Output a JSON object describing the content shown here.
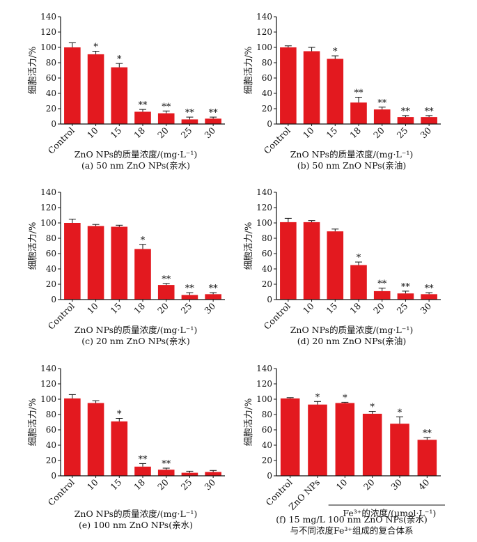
{
  "figure": {
    "bar_color": "#e3191f",
    "axis_color": "#111111"
  },
  "chart_data": [
    {
      "type": "bar",
      "panel": "a",
      "categories": [
        "Control",
        "10",
        "15",
        "18",
        "20",
        "25",
        "30"
      ],
      "values": [
        100,
        91,
        74,
        16,
        14,
        6,
        7
      ],
      "errors": [
        6,
        4,
        5,
        3,
        3,
        3,
        2
      ],
      "significance": [
        "",
        "*",
        "*",
        "**",
        "**",
        "**",
        "**"
      ],
      "ylabel": "细胞活力/%",
      "ylim": [
        0,
        140
      ],
      "yticks": [
        "0",
        "20",
        "40",
        "60",
        "80",
        "100",
        "120",
        "140"
      ],
      "xlabel": "ZnO NPs的质量浓度/(mg·L⁻¹)",
      "panel_label": "(a) 50 nm ZnO NPs(亲水)",
      "group_label": ""
    },
    {
      "type": "bar",
      "panel": "b",
      "categories": [
        "Control",
        "10",
        "15",
        "18",
        "20",
        "25",
        "30"
      ],
      "values": [
        100,
        95,
        85,
        28,
        19,
        9,
        9
      ],
      "errors": [
        2,
        5,
        4,
        7,
        3,
        2,
        2
      ],
      "significance": [
        "",
        "",
        "*",
        "**",
        "**",
        "**",
        "**"
      ],
      "ylabel": "细胞活力/%",
      "ylim": [
        0,
        140
      ],
      "yticks": [
        "0",
        "20",
        "40",
        "60",
        "80",
        "100",
        "120",
        "140"
      ],
      "xlabel": "ZnO NPs的质量浓度/(mg·L⁻¹)",
      "panel_label": "(b) 50 nm ZnO NPs(亲油)",
      "group_label": ""
    },
    {
      "type": "bar",
      "panel": "c",
      "categories": [
        "Control",
        "10",
        "15",
        "18",
        "20",
        "25",
        "30"
      ],
      "values": [
        100,
        96,
        95,
        66,
        19,
        6,
        7
      ],
      "errors": [
        5,
        2,
        2,
        6,
        2,
        3,
        2
      ],
      "significance": [
        "",
        "",
        "",
        "*",
        "**",
        "**",
        "**"
      ],
      "ylabel": "细胞活力/%",
      "ylim": [
        0,
        140
      ],
      "yticks": [
        "0",
        "20",
        "40",
        "60",
        "80",
        "100",
        "120",
        "140"
      ],
      "xlabel": "ZnO NPs的质量浓度/(mg·L⁻¹)",
      "panel_label": "(c) 20 nm ZnO NPs(亲水)",
      "group_label": ""
    },
    {
      "type": "bar",
      "panel": "d",
      "categories": [
        "Control",
        "10",
        "15",
        "18",
        "20",
        "25",
        "30"
      ],
      "values": [
        101,
        101,
        89,
        45,
        11,
        8,
        7
      ],
      "errors": [
        5,
        2,
        3,
        4,
        4,
        3,
        2
      ],
      "significance": [
        "",
        "",
        "",
        "*",
        "**",
        "**",
        "**"
      ],
      "ylabel": "细胞活力/%",
      "ylim": [
        0,
        140
      ],
      "yticks": [
        "0",
        "20",
        "40",
        "60",
        "80",
        "100",
        "120",
        "140"
      ],
      "xlabel": "ZnO NPs的质量浓度/(mg·L⁻¹)",
      "panel_label": "(d) 20 nm ZnO NPs(亲油)",
      "group_label": ""
    },
    {
      "type": "bar",
      "panel": "e",
      "categories": [
        "Control",
        "10",
        "15",
        "18",
        "20",
        "25",
        "30"
      ],
      "values": [
        101,
        95,
        71,
        12,
        8,
        4,
        5
      ],
      "errors": [
        5,
        3,
        4,
        4,
        2,
        2,
        2
      ],
      "significance": [
        "",
        "",
        "*",
        "**",
        "**",
        "",
        ""
      ],
      "ylabel": "细胞活力/%",
      "ylim": [
        0,
        140
      ],
      "yticks": [
        "0",
        "20",
        "40",
        "60",
        "80",
        "100",
        "120",
        "140"
      ],
      "xlabel": "ZnO NPs的质量浓度/(mg·L⁻¹)",
      "panel_label": "(e) 100 nm ZnO NPs(亲水)",
      "group_label": ""
    },
    {
      "type": "bar",
      "panel": "f",
      "categories": [
        "Control",
        "ZnO NPs",
        "10",
        "20",
        "30",
        "40"
      ],
      "values": [
        101,
        93,
        95,
        81,
        68,
        47
      ],
      "errors": [
        1,
        4,
        1,
        3,
        9,
        3
      ],
      "significance": [
        "",
        "*",
        "*",
        "*",
        "*",
        "**"
      ],
      "ylabel": "细胞活力/%",
      "ylim": [
        0,
        140
      ],
      "yticks": [
        "0",
        "20",
        "40",
        "60",
        "80",
        "100",
        "120",
        "140"
      ],
      "xlabel": "",
      "panel_label": "(f) 15 mg/L 100 nm ZnO NPs(亲水)",
      "panel_label_2": "与不同浓度Fe³⁺组成的复合体系",
      "group_label": "Fe³⁺的浓度/(μmol·L⁻¹)"
    }
  ]
}
